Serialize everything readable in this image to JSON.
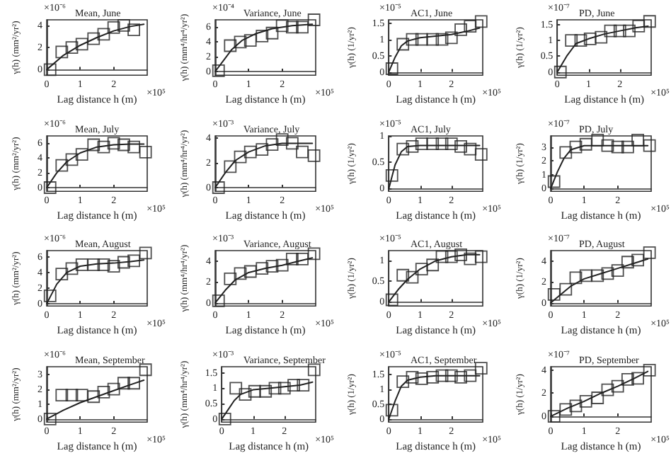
{
  "chart_data": [
    {
      "type": "scatter",
      "title": "Mean, June",
      "xlabel": "Lag distance h (m)",
      "ylabel": "γ(h) (mm²/yr²)",
      "annotations": [
        "×10⁻⁶",
        "×10⁵"
      ],
      "xlim": [
        0,
        3
      ],
      "xticks": [
        0,
        1,
        2
      ],
      "ylim": [
        -0.5,
        4.5
      ],
      "yticks": [
        0,
        2,
        4
      ],
      "series": [
        {
          "type": "scatter",
          "marker": "square",
          "color": "#222222",
          "x": [
            0.1,
            0.45,
            0.75,
            1.05,
            1.4,
            1.7,
            2.0,
            2.3,
            2.6
          ],
          "values": [
            0,
            1.6,
            2.0,
            2.3,
            2.8,
            3.2,
            3.8,
            4.0,
            3.6
          ]
        },
        {
          "type": "line",
          "marker": "none",
          "color": "#222222",
          "x": [
            0,
            0.5,
            1,
            1.5,
            2,
            2.5,
            2.9
          ],
          "values": [
            0,
            1.3,
            2.2,
            2.9,
            3.5,
            3.9,
            4.1
          ]
        }
      ]
    },
    {
      "type": "scatter",
      "title": "Variance, June",
      "xlabel": "Lag distance h (m)",
      "ylabel": "γ(h) (mm⁴/hr⁴/yr²)",
      "annotations": [
        "×10⁻⁴",
        "×10⁵"
      ],
      "xlim": [
        0,
        3
      ],
      "xticks": [
        0,
        1,
        2
      ],
      "ylim": [
        -0.5,
        7
      ],
      "yticks": [
        0,
        2,
        4,
        6
      ],
      "series": [
        {
          "type": "scatter",
          "marker": "square",
          "color": "#222222",
          "x": [
            0.1,
            0.45,
            0.75,
            1.05,
            1.4,
            1.7,
            2.0,
            2.3,
            2.6,
            2.95
          ],
          "values": [
            0.1,
            3.5,
            4.0,
            4.2,
            4.8,
            5.2,
            6.2,
            6.0,
            6.0,
            7.0
          ]
        },
        {
          "type": "line",
          "marker": "none",
          "color": "#222222",
          "x": [
            0,
            0.25,
            0.5,
            0.8,
            1.2,
            1.7,
            2.3,
            2.9
          ],
          "values": [
            0,
            1.5,
            3.0,
            4.2,
            5.1,
            5.8,
            6.2,
            6.4
          ]
        }
      ]
    },
    {
      "type": "scatter",
      "title": "AC1, June",
      "xlabel": "Lag distance h (m)",
      "ylabel": "γ(h) (1/yr²)",
      "annotations": [
        "×10⁻⁵",
        "×10⁵"
      ],
      "xlim": [
        0,
        3
      ],
      "xticks": [
        0,
        1,
        2
      ],
      "ylim": [
        -0.1,
        1.6
      ],
      "yticks": [
        0,
        0.5,
        1,
        1.5
      ],
      "series": [
        {
          "type": "scatter",
          "marker": "square",
          "color": "#222222",
          "x": [
            0.1,
            0.45,
            0.75,
            1.05,
            1.4,
            1.7,
            2.0,
            2.3,
            2.6,
            2.95
          ],
          "values": [
            0.1,
            0.85,
            1.0,
            1.0,
            1.0,
            1.0,
            1.05,
            1.3,
            1.4,
            1.55
          ]
        },
        {
          "type": "line",
          "marker": "none",
          "color": "#222222",
          "x": [
            0,
            0.2,
            0.4,
            0.6,
            1,
            1.5,
            2,
            2.5,
            2.9
          ],
          "values": [
            0,
            0.45,
            0.8,
            0.95,
            1.05,
            1.1,
            1.15,
            1.25,
            1.35
          ]
        }
      ]
    },
    {
      "type": "scatter",
      "title": "PD, June",
      "xlabel": "Lag distance h (m)",
      "ylabel": "γ(h) (1/yr²)",
      "annotations": [
        "×10⁻⁷",
        "×10⁵"
      ],
      "xlim": [
        0,
        3
      ],
      "xticks": [
        0,
        1,
        2
      ],
      "ylim": [
        -0.1,
        1.65
      ],
      "yticks": [
        0,
        0.5,
        1,
        1.5
      ],
      "series": [
        {
          "type": "scatter",
          "marker": "square",
          "color": "#222222",
          "x": [
            0.1,
            0.45,
            0.75,
            1.05,
            1.4,
            1.7,
            2.0,
            2.3,
            2.6,
            2.95
          ],
          "values": [
            0,
            1.0,
            1.0,
            1.05,
            1.1,
            1.3,
            1.3,
            1.3,
            1.45,
            1.6
          ]
        },
        {
          "type": "line",
          "marker": "none",
          "color": "#222222",
          "x": [
            0,
            0.3,
            0.6,
            1,
            1.5,
            2,
            2.5,
            2.9
          ],
          "values": [
            0,
            0.5,
            0.9,
            1.05,
            1.2,
            1.3,
            1.4,
            1.45
          ]
        }
      ]
    },
    {
      "type": "scatter",
      "title": "Mean, July",
      "xlabel": "Lag distance h (m)",
      "ylabel": "γ(h) (mm²/yr²)",
      "annotations": [
        "×10⁻⁶",
        "×10⁵"
      ],
      "xlim": [
        0,
        3
      ],
      "xticks": [
        0,
        1,
        2
      ],
      "ylim": [
        -0.5,
        7
      ],
      "yticks": [
        0,
        2,
        4,
        6
      ],
      "series": [
        {
          "type": "scatter",
          "marker": "square",
          "color": "#222222",
          "x": [
            0.1,
            0.45,
            0.75,
            1.05,
            1.4,
            1.7,
            2.0,
            2.3,
            2.6,
            2.95
          ],
          "values": [
            0,
            3.0,
            3.8,
            4.5,
            5.8,
            5.5,
            6.0,
            5.8,
            5.5,
            4.8
          ]
        },
        {
          "type": "line",
          "marker": "none",
          "color": "#222222",
          "x": [
            0,
            0.3,
            0.6,
            1,
            1.5,
            2,
            2.5,
            2.9
          ],
          "values": [
            0,
            2.0,
            3.5,
            4.7,
            5.5,
            5.8,
            5.9,
            5.9
          ]
        }
      ]
    },
    {
      "type": "scatter",
      "title": "Variance, July",
      "xlabel": "Lag distance h (m)",
      "ylabel": "γ(h) (mm⁴/hr⁴/yr²)",
      "annotations": [
        "×10⁻³",
        "×10⁵"
      ],
      "xlim": [
        0,
        3
      ],
      "xticks": [
        0,
        1,
        2
      ],
      "ylim": [
        -0.3,
        4.2
      ],
      "yticks": [
        0,
        2,
        4
      ],
      "series": [
        {
          "type": "scatter",
          "marker": "square",
          "color": "#222222",
          "x": [
            0.1,
            0.45,
            0.75,
            1.05,
            1.4,
            1.7,
            2.0,
            2.3,
            2.6,
            2.95
          ],
          "values": [
            0,
            1.7,
            2.5,
            2.9,
            3.1,
            3.5,
            3.9,
            3.6,
            2.9,
            2.6
          ]
        },
        {
          "type": "line",
          "marker": "none",
          "color": "#222222",
          "x": [
            0,
            0.3,
            0.6,
            1,
            1.5,
            2,
            2.5,
            2.9
          ],
          "values": [
            0,
            1.2,
            2.2,
            2.9,
            3.4,
            3.6,
            3.6,
            3.6
          ]
        }
      ]
    },
    {
      "type": "scatter",
      "title": "AC1, July",
      "xlabel": "Lag distance h (m)",
      "ylabel": "γ(h) (1/yr²)",
      "annotations": [
        "×10⁻⁵",
        "×10⁵"
      ],
      "xlim": [
        0,
        3
      ],
      "xticks": [
        0,
        1,
        2
      ],
      "ylim": [
        -0.05,
        1
      ],
      "yticks": [
        0,
        0.5,
        1
      ],
      "series": [
        {
          "type": "scatter",
          "marker": "square",
          "color": "#222222",
          "x": [
            0.1,
            0.45,
            0.75,
            1.05,
            1.4,
            1.7,
            2.0,
            2.3,
            2.6,
            2.95
          ],
          "values": [
            0.25,
            0.75,
            0.8,
            0.85,
            0.85,
            0.85,
            0.85,
            0.8,
            0.75,
            0.65
          ]
        },
        {
          "type": "line",
          "marker": "none",
          "color": "#222222",
          "x": [
            0,
            0.2,
            0.4,
            0.6,
            1,
            1.5,
            2,
            2.5,
            2.9
          ],
          "values": [
            0,
            0.45,
            0.7,
            0.8,
            0.82,
            0.82,
            0.82,
            0.82,
            0.82
          ]
        }
      ]
    },
    {
      "type": "scatter",
      "title": "PD, July",
      "xlabel": "Lag distance h (m)",
      "ylabel": "γ(h) (1/yr²)",
      "annotations": [
        "×10⁻⁷",
        "×10⁵"
      ],
      "xlim": [
        0,
        3
      ],
      "xticks": [
        0,
        1,
        2
      ],
      "ylim": [
        -0.2,
        3.8
      ],
      "yticks": [
        0,
        1,
        2,
        3
      ],
      "series": [
        {
          "type": "scatter",
          "marker": "square",
          "color": "#222222",
          "x": [
            0.1,
            0.45,
            0.75,
            1.05,
            1.4,
            1.7,
            2.0,
            2.3,
            2.6,
            2.95
          ],
          "values": [
            0.5,
            2.6,
            3.0,
            3.2,
            3.5,
            3.1,
            3.0,
            3.0,
            3.5,
            3.1
          ]
        },
        {
          "type": "line",
          "marker": "none",
          "color": "#222222",
          "x": [
            0,
            0.2,
            0.4,
            0.6,
            1,
            1.5,
            2,
            2.5,
            2.9
          ],
          "values": [
            0,
            1.2,
            2.2,
            2.8,
            3.1,
            3.1,
            3.1,
            3.1,
            3.1
          ]
        }
      ]
    },
    {
      "type": "scatter",
      "title": "Mean, August",
      "xlabel": "Lag distance h (m)",
      "ylabel": "γ(h) (mm²/yr²)",
      "annotations": [
        "×10⁻⁶",
        "×10⁵"
      ],
      "xlim": [
        0,
        3
      ],
      "xticks": [
        0,
        1,
        2
      ],
      "ylim": [
        -0.3,
        6.8
      ],
      "yticks": [
        0,
        2,
        4,
        6
      ],
      "series": [
        {
          "type": "scatter",
          "marker": "square",
          "color": "#222222",
          "x": [
            0.1,
            0.45,
            0.75,
            1.05,
            1.4,
            1.7,
            2.0,
            2.3,
            2.6,
            2.95
          ],
          "values": [
            1.0,
            3.8,
            4.5,
            5.0,
            5.0,
            5.0,
            4.8,
            5.3,
            5.5,
            6.5
          ]
        },
        {
          "type": "line",
          "marker": "none",
          "color": "#222222",
          "x": [
            0,
            0.3,
            0.6,
            1,
            1.5,
            2,
            2.5,
            2.9
          ],
          "values": [
            0,
            2.5,
            4.0,
            4.8,
            5.1,
            5.2,
            5.4,
            5.6
          ]
        }
      ]
    },
    {
      "type": "scatter",
      "title": "Variance, August",
      "xlabel": "Lag distance h (m)",
      "ylabel": "γ(h) (mm⁴/hr⁴/yr²)",
      "annotations": [
        "×10⁻³",
        "×10⁵"
      ],
      "xlim": [
        0,
        3
      ],
      "xticks": [
        0,
        1,
        2
      ],
      "ylim": [
        -0.3,
        5
      ],
      "yticks": [
        0,
        2,
        4
      ],
      "series": [
        {
          "type": "scatter",
          "marker": "square",
          "color": "#222222",
          "x": [
            0.1,
            0.45,
            0.75,
            1.05,
            1.4,
            1.7,
            2.0,
            2.3,
            2.6,
            2.95
          ],
          "values": [
            0.2,
            2.3,
            2.8,
            3.0,
            3.3,
            3.5,
            3.6,
            4.2,
            4.2,
            4.7
          ]
        },
        {
          "type": "line",
          "marker": "none",
          "color": "#222222",
          "x": [
            0,
            0.3,
            0.6,
            1,
            1.5,
            2,
            2.5,
            2.9
          ],
          "values": [
            0,
            1.2,
            2.2,
            2.9,
            3.3,
            3.6,
            4.0,
            4.3
          ]
        }
      ]
    },
    {
      "type": "scatter",
      "title": "AC1, August",
      "xlabel": "Lag distance h (m)",
      "ylabel": "γ(h) (1/yr²)",
      "annotations": [
        "×10⁻⁵",
        "×10⁵"
      ],
      "xlim": [
        0,
        3
      ],
      "xticks": [
        0,
        1,
        2
      ],
      "ylim": [
        -0.1,
        1.25
      ],
      "yticks": [
        0,
        0.5,
        1
      ],
      "series": [
        {
          "type": "scatter",
          "marker": "square",
          "color": "#222222",
          "x": [
            0.1,
            0.45,
            0.75,
            1.05,
            1.4,
            1.7,
            2.0,
            2.3,
            2.6,
            2.95
          ],
          "values": [
            0.05,
            0.65,
            0.6,
            0.8,
            0.9,
            1.1,
            1.1,
            1.15,
            1.05,
            1.1
          ]
        },
        {
          "type": "line",
          "marker": "none",
          "color": "#222222",
          "x": [
            0,
            0.3,
            0.6,
            1,
            1.5,
            2,
            2.5,
            2.9
          ],
          "values": [
            0,
            0.3,
            0.55,
            0.8,
            1.0,
            1.1,
            1.15,
            1.15
          ]
        }
      ]
    },
    {
      "type": "scatter",
      "title": "PD, August",
      "xlabel": "Lag distance h (m)",
      "ylabel": "γ(h) (1/yr²)",
      "annotations": [
        "×10⁻⁷",
        "×10⁵"
      ],
      "xlim": [
        0,
        3
      ],
      "xticks": [
        0,
        1,
        2
      ],
      "ylim": [
        -0.3,
        5
      ],
      "yticks": [
        0,
        2,
        4
      ],
      "series": [
        {
          "type": "scatter",
          "marker": "square",
          "color": "#222222",
          "x": [
            0.1,
            0.45,
            0.75,
            1.05,
            1.4,
            1.7,
            2.0,
            2.3,
            2.6,
            2.95
          ],
          "values": [
            0.8,
            1.3,
            2.4,
            2.6,
            2.6,
            2.8,
            3.1,
            3.9,
            4.1,
            4.8
          ]
        },
        {
          "type": "line",
          "marker": "none",
          "color": "#222222",
          "x": [
            0,
            0.3,
            0.6,
            1,
            1.5,
            2,
            2.5,
            2.9
          ],
          "values": [
            0,
            0.8,
            1.6,
            2.3,
            2.8,
            3.3,
            3.8,
            4.2
          ]
        }
      ]
    },
    {
      "type": "scatter",
      "title": "Mean, September",
      "xlabel": "Lag distance h (m)",
      "ylabel": "γ(h) (mm²/yr²)",
      "annotations": [
        "×10⁻⁶",
        "×10⁵"
      ],
      "xlim": [
        0,
        3
      ],
      "xticks": [
        0,
        1,
        2
      ],
      "ylim": [
        -0.2,
        3.5
      ],
      "yticks": [
        0,
        1,
        2,
        3
      ],
      "series": [
        {
          "type": "scatter",
          "marker": "square",
          "color": "#222222",
          "x": [
            0.1,
            0.45,
            0.75,
            1.05,
            1.4,
            1.7,
            2.0,
            2.3,
            2.6,
            2.95
          ],
          "values": [
            0,
            1.6,
            1.6,
            1.6,
            1.5,
            1.8,
            2.0,
            2.4,
            2.4,
            3.3
          ]
        },
        {
          "type": "line",
          "marker": "none",
          "color": "#222222",
          "x": [
            0,
            0.5,
            1,
            1.5,
            2,
            2.5,
            2.9
          ],
          "values": [
            0,
            0.6,
            1.1,
            1.5,
            1.9,
            2.3,
            2.6
          ]
        }
      ]
    },
    {
      "type": "scatter",
      "title": "Variance, September",
      "xlabel": "Lag distance h (m)",
      "ylabel": "γ(h) (mm⁴/hr⁴/yr²)",
      "annotations": [
        "×10⁻³",
        "×10⁵"
      ],
      "xlim": [
        0,
        3
      ],
      "xticks": [
        0,
        1,
        2
      ],
      "ylim": [
        -0.1,
        1.7
      ],
      "yticks": [
        0,
        0.5,
        1,
        1.5
      ],
      "series": [
        {
          "type": "scatter",
          "marker": "square",
          "color": "#222222",
          "x": [
            0.1,
            0.45,
            0.75,
            1.05,
            1.4,
            1.7,
            2.0,
            2.3,
            2.6,
            2.95
          ],
          "values": [
            0,
            1.0,
            0.8,
            0.9,
            0.9,
            1.0,
            1.0,
            1.1,
            1.1,
            1.6
          ]
        },
        {
          "type": "line",
          "marker": "none",
          "color": "#222222",
          "x": [
            0,
            0.2,
            0.4,
            0.6,
            1,
            1.5,
            2,
            2.5,
            2.9
          ],
          "values": [
            0,
            0.3,
            0.6,
            0.8,
            0.95,
            1.0,
            1.05,
            1.1,
            1.2
          ]
        }
      ]
    },
    {
      "type": "scatter",
      "title": "AC1, September",
      "xlabel": "Lag distance h (m)",
      "ylabel": "γ(h) (1/yr²)",
      "annotations": [
        "×10⁻⁵",
        "×10⁵"
      ],
      "xlim": [
        0,
        3
      ],
      "xticks": [
        0,
        1,
        2
      ],
      "ylim": [
        -0.1,
        1.75
      ],
      "yticks": [
        0,
        0.5,
        1,
        1.5
      ],
      "series": [
        {
          "type": "scatter",
          "marker": "square",
          "color": "#222222",
          "x": [
            0.1,
            0.45,
            0.75,
            1.05,
            1.4,
            1.7,
            2.0,
            2.3,
            2.6,
            2.95
          ],
          "values": [
            0.3,
            1.25,
            1.4,
            1.35,
            1.4,
            1.45,
            1.45,
            1.4,
            1.45,
            1.7
          ]
        },
        {
          "type": "line",
          "marker": "none",
          "color": "#222222",
          "x": [
            0,
            0.2,
            0.4,
            0.6,
            1,
            1.5,
            2,
            2.5,
            2.9
          ],
          "values": [
            0,
            0.6,
            1.1,
            1.3,
            1.4,
            1.45,
            1.45,
            1.45,
            1.45
          ]
        }
      ]
    },
    {
      "type": "scatter",
      "title": "PD, September",
      "xlabel": "Lag distance h (m)",
      "ylabel": "γ(h) (1/yr²)",
      "annotations": [
        "×10⁻⁷",
        "×10⁵"
      ],
      "xlim": [
        0,
        3
      ],
      "xticks": [
        0,
        1,
        2
      ],
      "ylim": [
        -0.5,
        4.3
      ],
      "yticks": [
        0,
        2,
        4
      ],
      "series": [
        {
          "type": "scatter",
          "marker": "square",
          "color": "#222222",
          "x": [
            0.1,
            0.45,
            0.75,
            1.05,
            1.4,
            1.7,
            2.0,
            2.3,
            2.6,
            2.95
          ],
          "values": [
            0,
            0.6,
            0.9,
            1.3,
            1.6,
            2.3,
            2.6,
            3.2,
            3.3,
            4.0
          ]
        },
        {
          "type": "line",
          "marker": "none",
          "color": "#222222",
          "x": [
            0,
            0.5,
            1,
            1.5,
            2,
            2.5,
            2.9
          ],
          "values": [
            0,
            0.7,
            1.3,
            2.0,
            2.6,
            3.3,
            3.9
          ]
        }
      ]
    }
  ]
}
